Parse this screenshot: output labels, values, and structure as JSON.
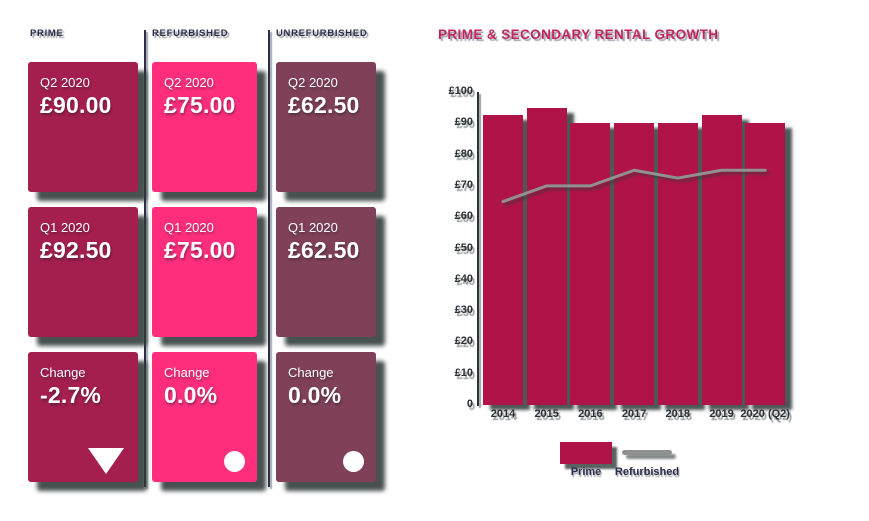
{
  "colors": {
    "background": "#ffffff",
    "prime_card": "#a51e50",
    "refurbished_card": "#ff2e7d",
    "unrefurbished_card": "#81405a",
    "bar_fill": "#b01348",
    "line_stroke": "#909090",
    "heading_text": "#2d2d4d",
    "chart_title_text": "#c2255c",
    "axis_text": "#2b3136",
    "card_text": "#ffffff",
    "shadow": "#2f3939"
  },
  "kpi_columns": [
    {
      "header": "PRIME",
      "card_color": "#a51e50",
      "cards": [
        {
          "label": "Q2 2020",
          "value": "£90.00"
        },
        {
          "label": "Q1 2020",
          "value": "£92.50"
        },
        {
          "label": "Change",
          "value": "-2.7%",
          "indicator": "triangle-down"
        }
      ]
    },
    {
      "header": "REFURBISHED",
      "card_color": "#ff2e7d",
      "cards": [
        {
          "label": "Q2 2020",
          "value": "£75.00"
        },
        {
          "label": "Q1 2020",
          "value": "£75.00"
        },
        {
          "label": "Change",
          "value": "0.0%",
          "indicator": "circle"
        }
      ]
    },
    {
      "header": "UNREFURBISHED",
      "card_color": "#81405a",
      "cards": [
        {
          "label": "Q2 2020",
          "value": "£62.50"
        },
        {
          "label": "Q1 2020",
          "value": "£62.50"
        },
        {
          "label": "Change",
          "value": "0.0%",
          "indicator": "circle"
        }
      ]
    }
  ],
  "chart": {
    "title": "PRIME & SECONDARY RENTAL GROWTH",
    "y_tick_labels": [
      "£100",
      "£90",
      "£80",
      "£70",
      "£60",
      "£50",
      "£40",
      "£30",
      "£20",
      "£10",
      "0"
    ],
    "legend": [
      {
        "label": "Prime",
        "swatch": "bar"
      },
      {
        "label": "Refurbished",
        "swatch": "line"
      }
    ]
  },
  "chart_data": {
    "type": "bar",
    "title": "PRIME & SECONDARY RENTAL GROWTH",
    "categories": [
      "2014",
      "2015",
      "2016",
      "2017",
      "2018",
      "2019",
      "2020 (Q2)"
    ],
    "series": [
      {
        "name": "Prime",
        "type": "bar",
        "values": [
          92.5,
          95,
          90,
          90,
          90,
          92.5,
          90
        ]
      },
      {
        "name": "Refurbished",
        "type": "line",
        "values": [
          65,
          70,
          70,
          75,
          72.5,
          75,
          75
        ]
      }
    ],
    "xlabel": "",
    "ylabel": "",
    "ylim": [
      0,
      100
    ],
    "y_tick_step": 10,
    "currency": "£",
    "grid": false,
    "legend_position": "bottom"
  }
}
